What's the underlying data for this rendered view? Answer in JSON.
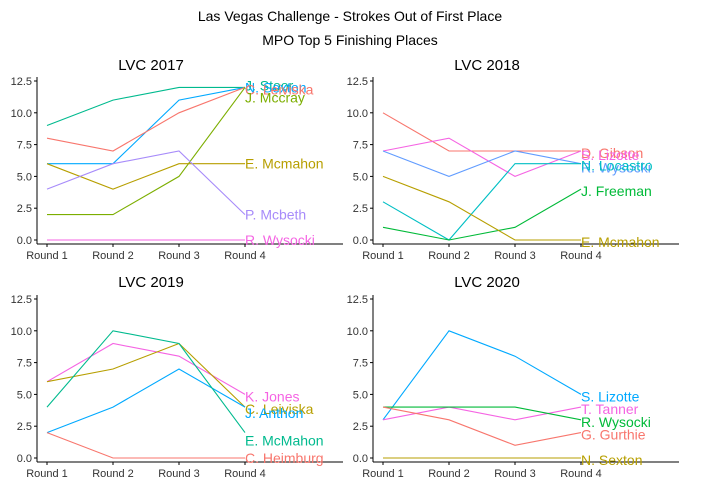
{
  "title_line1": "Las Vegas Challenge - Strokes Out of First Place",
  "title_line2": "MPO Top 5 Finishing Places",
  "colors": {
    "red": "#F8766D",
    "olive": "#B79F00",
    "green": "#00BA38",
    "teal": "#00BFC4",
    "blue": "#619CFF",
    "magenta": "#F564E3",
    "tealgreen": "#00BA8E",
    "azure": "#00A9FF",
    "lightgreen": "#7CAE00",
    "lilac": "#A78BFA"
  },
  "chart_data": [
    {
      "type": "line",
      "title": "LVC 2017",
      "categories": [
        "Round 1",
        "Round 2",
        "Round 3",
        "Round 4"
      ],
      "ylim": [
        0,
        12.5
      ],
      "yticks": [
        "0.0",
        "2.5",
        "5.0",
        "7.5",
        "10.0",
        "12.5"
      ],
      "series": [
        {
          "name": "J. Stoor",
          "values": [
            9,
            11,
            12,
            12
          ],
          "color": "tealgreen"
        },
        {
          "name": "N. Sexton",
          "values": [
            6,
            6,
            11,
            12
          ],
          "color": "azure"
        },
        {
          "name": "C. Leiviska",
          "values": [
            8,
            7,
            10,
            12
          ],
          "color": "red"
        },
        {
          "name": "J. Mccray",
          "values": [
            2,
            2,
            5,
            12
          ],
          "color": "lightgreen"
        },
        {
          "name": "E. Mcmahon",
          "values": [
            6,
            4,
            6,
            6
          ],
          "color": "olive"
        },
        {
          "name": "P. Mcbeth",
          "values": [
            4,
            6,
            7,
            2
          ],
          "color": "lilac"
        },
        {
          "name": "R. Wysocki",
          "values": [
            0,
            0,
            0,
            0
          ],
          "color": "magenta"
        }
      ]
    },
    {
      "type": "line",
      "title": "LVC 2018",
      "categories": [
        "Round 1",
        "Round 2",
        "Round 3",
        "Round 4"
      ],
      "ylim": [
        0,
        12.5
      ],
      "yticks": [
        "0.0",
        "2.5",
        "5.0",
        "7.5",
        "10.0",
        "12.5"
      ],
      "series": [
        {
          "name": "D. Gibson",
          "values": [
            10,
            7,
            7,
            7
          ],
          "color": "red"
        },
        {
          "name": "S. Lizotte",
          "values": [
            7,
            8,
            5,
            7
          ],
          "color": "magenta"
        },
        {
          "name": "R. Wysocki",
          "values": [
            7,
            5,
            7,
            6
          ],
          "color": "blue"
        },
        {
          "name": "N. Locastro",
          "values": [
            3,
            0,
            6,
            6
          ],
          "color": "teal"
        },
        {
          "name": "J. Freeman",
          "values": [
            1,
            0,
            1,
            4
          ],
          "color": "green"
        },
        {
          "name": "E. Mcmahon",
          "values": [
            5,
            3,
            0,
            0
          ],
          "color": "olive"
        }
      ]
    },
    {
      "type": "line",
      "title": "LVC 2019",
      "categories": [
        "Round 1",
        "Round 2",
        "Round 3",
        "Round 4"
      ],
      "ylim": [
        0,
        12.5
      ],
      "yticks": [
        "0.0",
        "2.5",
        "5.0",
        "7.5",
        "10.0",
        "12.5"
      ],
      "series": [
        {
          "name": "K. Jones",
          "values": [
            6,
            9,
            8,
            5
          ],
          "color": "magenta"
        },
        {
          "name": "C. Leiviska",
          "values": [
            6,
            7,
            9,
            4
          ],
          "color": "olive"
        },
        {
          "name": "J. Anthon",
          "values": [
            2,
            4,
            7,
            4
          ],
          "color": "azure"
        },
        {
          "name": "E. McMahon",
          "values": [
            4,
            10,
            9,
            2
          ],
          "color": "tealgreen"
        },
        {
          "name": "C. Heimburg",
          "values": [
            2,
            0,
            0,
            0
          ],
          "color": "red"
        }
      ]
    },
    {
      "type": "line",
      "title": "LVC 2020",
      "categories": [
        "Round 1",
        "Round 2",
        "Round 3",
        "Round 4"
      ],
      "ylim": [
        0,
        12.5
      ],
      "yticks": [
        "0.0",
        "2.5",
        "5.0",
        "7.5",
        "10.0",
        "12.5"
      ],
      "series": [
        {
          "name": "S. Lizotte",
          "values": [
            3,
            10,
            8,
            5
          ],
          "color": "azure"
        },
        {
          "name": "T. Tanner",
          "values": [
            3,
            4,
            3,
            4
          ],
          "color": "magenta"
        },
        {
          "name": "R. Wysocki",
          "values": [
            4,
            4,
            4,
            3
          ],
          "color": "green"
        },
        {
          "name": "G. Gurthie",
          "values": [
            4,
            3,
            1,
            2
          ],
          "color": "red"
        },
        {
          "name": "N. Sexton",
          "values": [
            0,
            0,
            0,
            0
          ],
          "color": "olive"
        }
      ]
    }
  ]
}
